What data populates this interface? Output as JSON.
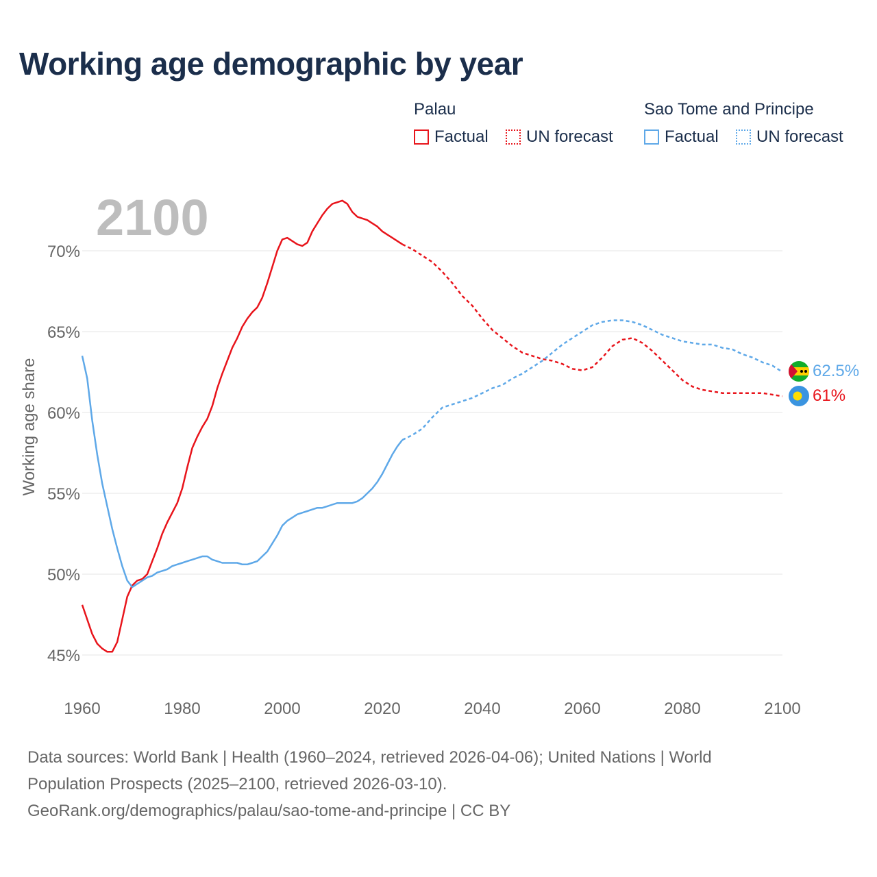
{
  "title": "Working age demographic by year",
  "legend": {
    "groups": [
      {
        "country": "Palau",
        "factual_label": "Factual",
        "forecast_label": "UN forecast",
        "color": "#e8141b"
      },
      {
        "country": "Sao Tome and Principe",
        "factual_label": "Factual",
        "forecast_label": "UN forecast",
        "color": "#5ea8e8"
      }
    ]
  },
  "year_label": "2100",
  "end_labels": {
    "palau": "61%",
    "sao_tome": "62.5%"
  },
  "footer": {
    "line1": "Data sources: World Bank | Health (1960–2024, retrieved 2026-04-06); United Nations | World",
    "line2": "Population Prospects (2025–2100, retrieved 2026-03-10).",
    "line3": "GeoRank.org/demographics/palau/sao-tome-and-principe | CC BY"
  },
  "chart_data": {
    "type": "line",
    "title": "Working age demographic by year",
    "xlabel": "",
    "ylabel": "Working age share",
    "xlim": [
      1960,
      2100
    ],
    "ylim": [
      44.5,
      72.5
    ],
    "x_ticks": [
      1960,
      1980,
      2000,
      2020,
      2040,
      2060,
      2080,
      2100
    ],
    "x_tick_labels": [
      "1960",
      "1980",
      "2000",
      "2020",
      "2040",
      "2060",
      "2080",
      "2100"
    ],
    "y_ticks": [
      45,
      50,
      55,
      60,
      65,
      70
    ],
    "y_tick_labels": [
      "45%",
      "50%",
      "55%",
      "60%",
      "65%",
      "70%"
    ],
    "factual_end_year": 2024,
    "series": [
      {
        "name": "Palau",
        "color": "#e8141b",
        "points": [
          [
            1960,
            48.1
          ],
          [
            1961,
            47.2
          ],
          [
            1962,
            46.3
          ],
          [
            1963,
            45.7
          ],
          [
            1964,
            45.4
          ],
          [
            1965,
            45.2
          ],
          [
            1966,
            45.2
          ],
          [
            1967,
            45.8
          ],
          [
            1968,
            47.2
          ],
          [
            1969,
            48.6
          ],
          [
            1970,
            49.3
          ],
          [
            1971,
            49.6
          ],
          [
            1972,
            49.7
          ],
          [
            1973,
            50.0
          ],
          [
            1974,
            50.8
          ],
          [
            1975,
            51.6
          ],
          [
            1976,
            52.5
          ],
          [
            1977,
            53.2
          ],
          [
            1978,
            53.8
          ],
          [
            1979,
            54.4
          ],
          [
            1980,
            55.3
          ],
          [
            1981,
            56.6
          ],
          [
            1982,
            57.8
          ],
          [
            1983,
            58.5
          ],
          [
            1984,
            59.1
          ],
          [
            1985,
            59.6
          ],
          [
            1986,
            60.4
          ],
          [
            1987,
            61.5
          ],
          [
            1988,
            62.4
          ],
          [
            1989,
            63.2
          ],
          [
            1990,
            64.0
          ],
          [
            1991,
            64.6
          ],
          [
            1992,
            65.3
          ],
          [
            1993,
            65.8
          ],
          [
            1994,
            66.2
          ],
          [
            1995,
            66.5
          ],
          [
            1996,
            67.1
          ],
          [
            1997,
            68.0
          ],
          [
            1998,
            69.0
          ],
          [
            1999,
            70.0
          ],
          [
            2000,
            70.7
          ],
          [
            2001,
            70.8
          ],
          [
            2002,
            70.6
          ],
          [
            2003,
            70.4
          ],
          [
            2004,
            70.3
          ],
          [
            2005,
            70.5
          ],
          [
            2006,
            71.2
          ],
          [
            2007,
            71.7
          ],
          [
            2008,
            72.2
          ],
          [
            2009,
            72.6
          ],
          [
            2010,
            72.9
          ],
          [
            2011,
            73.0
          ],
          [
            2012,
            73.1
          ],
          [
            2013,
            72.9
          ],
          [
            2014,
            72.4
          ],
          [
            2015,
            72.1
          ],
          [
            2016,
            72.0
          ],
          [
            2017,
            71.9
          ],
          [
            2018,
            71.7
          ],
          [
            2019,
            71.5
          ],
          [
            2020,
            71.2
          ],
          [
            2021,
            71.0
          ],
          [
            2022,
            70.8
          ],
          [
            2023,
            70.6
          ],
          [
            2024,
            70.4
          ],
          [
            2026,
            70.1
          ],
          [
            2028,
            69.7
          ],
          [
            2030,
            69.3
          ],
          [
            2032,
            68.7
          ],
          [
            2034,
            68.0
          ],
          [
            2036,
            67.2
          ],
          [
            2038,
            66.6
          ],
          [
            2040,
            65.8
          ],
          [
            2042,
            65.1
          ],
          [
            2044,
            64.6
          ],
          [
            2046,
            64.1
          ],
          [
            2048,
            63.7
          ],
          [
            2050,
            63.5
          ],
          [
            2052,
            63.3
          ],
          [
            2054,
            63.2
          ],
          [
            2056,
            63.0
          ],
          [
            2058,
            62.7
          ],
          [
            2060,
            62.6
          ],
          [
            2062,
            62.8
          ],
          [
            2064,
            63.4
          ],
          [
            2066,
            64.1
          ],
          [
            2068,
            64.5
          ],
          [
            2070,
            64.6
          ],
          [
            2072,
            64.3
          ],
          [
            2074,
            63.8
          ],
          [
            2076,
            63.2
          ],
          [
            2078,
            62.6
          ],
          [
            2080,
            62.0
          ],
          [
            2082,
            61.6
          ],
          [
            2084,
            61.4
          ],
          [
            2086,
            61.3
          ],
          [
            2088,
            61.2
          ],
          [
            2090,
            61.2
          ],
          [
            2092,
            61.2
          ],
          [
            2094,
            61.2
          ],
          [
            2096,
            61.2
          ],
          [
            2098,
            61.1
          ],
          [
            2100,
            61.0
          ]
        ]
      },
      {
        "name": "Sao Tome and Principe",
        "color": "#5ea8e8",
        "points": [
          [
            1960,
            63.5
          ],
          [
            1961,
            62.1
          ],
          [
            1962,
            59.5
          ],
          [
            1963,
            57.4
          ],
          [
            1964,
            55.6
          ],
          [
            1965,
            54.2
          ],
          [
            1966,
            52.8
          ],
          [
            1967,
            51.6
          ],
          [
            1968,
            50.5
          ],
          [
            1969,
            49.6
          ],
          [
            1970,
            49.2
          ],
          [
            1971,
            49.4
          ],
          [
            1972,
            49.6
          ],
          [
            1973,
            49.8
          ],
          [
            1974,
            49.9
          ],
          [
            1975,
            50.1
          ],
          [
            1976,
            50.2
          ],
          [
            1977,
            50.3
          ],
          [
            1978,
            50.5
          ],
          [
            1979,
            50.6
          ],
          [
            1980,
            50.7
          ],
          [
            1981,
            50.8
          ],
          [
            1982,
            50.9
          ],
          [
            1983,
            51.0
          ],
          [
            1984,
            51.1
          ],
          [
            1985,
            51.1
          ],
          [
            1986,
            50.9
          ],
          [
            1987,
            50.8
          ],
          [
            1988,
            50.7
          ],
          [
            1989,
            50.7
          ],
          [
            1990,
            50.7
          ],
          [
            1991,
            50.7
          ],
          [
            1992,
            50.6
          ],
          [
            1993,
            50.6
          ],
          [
            1994,
            50.7
          ],
          [
            1995,
            50.8
          ],
          [
            1996,
            51.1
          ],
          [
            1997,
            51.4
          ],
          [
            1998,
            51.9
          ],
          [
            1999,
            52.4
          ],
          [
            2000,
            53.0
          ],
          [
            2001,
            53.3
          ],
          [
            2002,
            53.5
          ],
          [
            2003,
            53.7
          ],
          [
            2004,
            53.8
          ],
          [
            2005,
            53.9
          ],
          [
            2006,
            54.0
          ],
          [
            2007,
            54.1
          ],
          [
            2008,
            54.1
          ],
          [
            2009,
            54.2
          ],
          [
            2010,
            54.3
          ],
          [
            2011,
            54.4
          ],
          [
            2012,
            54.4
          ],
          [
            2013,
            54.4
          ],
          [
            2014,
            54.4
          ],
          [
            2015,
            54.5
          ],
          [
            2016,
            54.7
          ],
          [
            2017,
            55.0
          ],
          [
            2018,
            55.3
          ],
          [
            2019,
            55.7
          ],
          [
            2020,
            56.2
          ],
          [
            2021,
            56.8
          ],
          [
            2022,
            57.4
          ],
          [
            2023,
            57.9
          ],
          [
            2024,
            58.3
          ],
          [
            2026,
            58.6
          ],
          [
            2028,
            59.0
          ],
          [
            2030,
            59.7
          ],
          [
            2032,
            60.3
          ],
          [
            2034,
            60.5
          ],
          [
            2036,
            60.7
          ],
          [
            2038,
            60.9
          ],
          [
            2040,
            61.2
          ],
          [
            2042,
            61.5
          ],
          [
            2044,
            61.7
          ],
          [
            2046,
            62.1
          ],
          [
            2048,
            62.4
          ],
          [
            2050,
            62.8
          ],
          [
            2052,
            63.2
          ],
          [
            2054,
            63.7
          ],
          [
            2056,
            64.2
          ],
          [
            2058,
            64.6
          ],
          [
            2060,
            65.0
          ],
          [
            2062,
            65.4
          ],
          [
            2064,
            65.6
          ],
          [
            2066,
            65.7
          ],
          [
            2068,
            65.7
          ],
          [
            2070,
            65.6
          ],
          [
            2072,
            65.4
          ],
          [
            2074,
            65.1
          ],
          [
            2076,
            64.8
          ],
          [
            2078,
            64.6
          ],
          [
            2080,
            64.4
          ],
          [
            2082,
            64.3
          ],
          [
            2084,
            64.2
          ],
          [
            2086,
            64.2
          ],
          [
            2088,
            64.0
          ],
          [
            2090,
            63.9
          ],
          [
            2092,
            63.6
          ],
          [
            2094,
            63.4
          ],
          [
            2096,
            63.1
          ],
          [
            2098,
            62.9
          ],
          [
            2100,
            62.5
          ]
        ]
      }
    ]
  }
}
